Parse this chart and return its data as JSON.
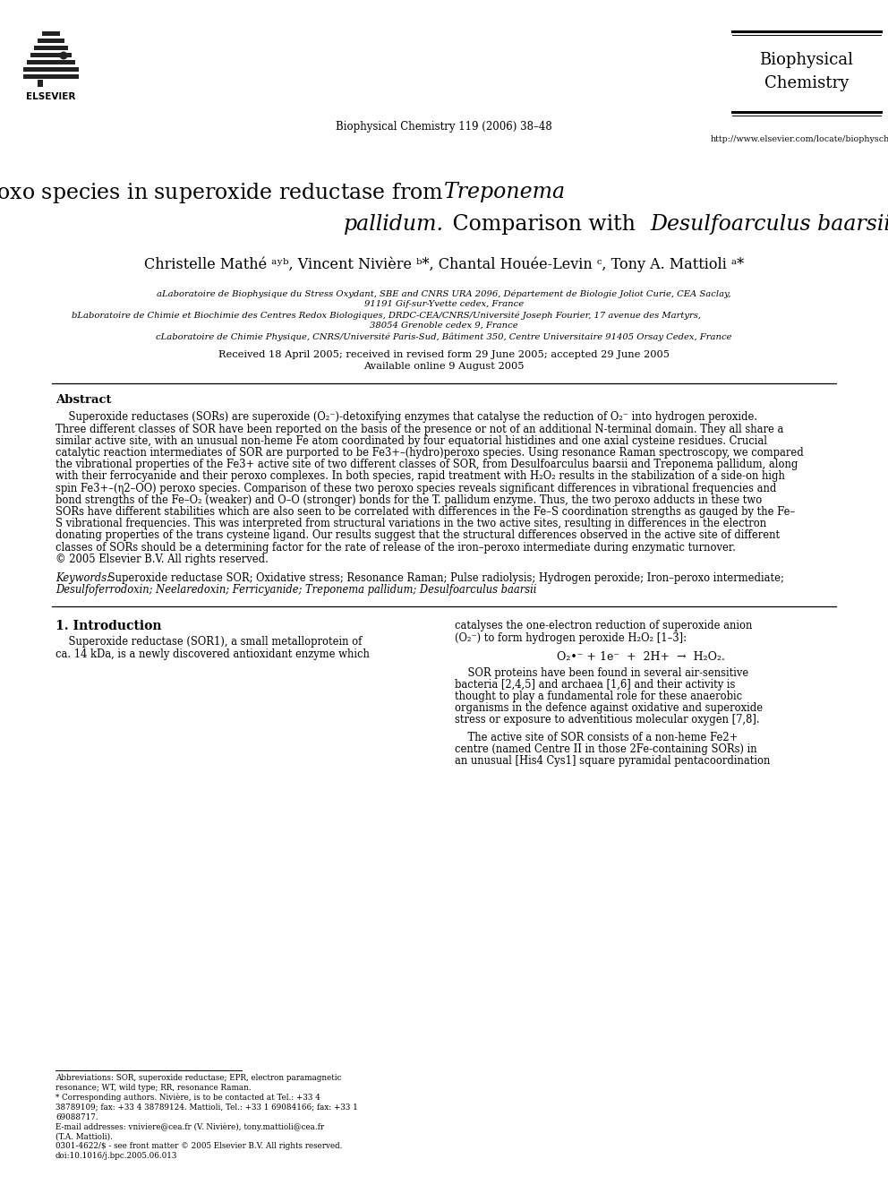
{
  "background_color": "#ffffff",
  "page_width": 9.92,
  "page_height": 13.23,
  "journal_name": "Biophysical\nChemistry",
  "journal_info": "Biophysical Chemistry 119 (2006) 38–48",
  "journal_url": "http://www.elsevier.com/locate/biophyschem",
  "authors": "Christelle Mathé a,b, Vincent Nivière b,*, Chantal Houée-Levin c, Tony A. Mattioli a,*",
  "affil_a": "aLaboratoire de Biophysique du Stress Oxydant, SBE and CNRS URA 2096, Département de Biologie Joliot Curie, CEA Saclay,",
  "affil_a2": "91191 Gif-sur-Yvette cedex, France",
  "affil_b": "bLaboratoire de Chimie et Biochimie des Centres Redox Biologiques, DRDC-CEA/CNRS/Université Joseph Fourier, 17 avenue des Martyrs,",
  "affil_b2": "38054 Grenoble cedex 9, France",
  "affil_c": "cLaboratoire de Chimie Physique, CNRS/Université Paris-Sud, Bâtiment 350, Centre Universitaire 91405 Orsay Cedex, France",
  "received": "Received 18 April 2005; received in revised form 29 June 2005; accepted 29 June 2005",
  "available": "Available online 9 August 2005",
  "abstract_title": "Abstract",
  "abstract_lines": [
    "    Superoxide reductases (SORs) are superoxide (O₂⁻)-detoxifying enzymes that catalyse the reduction of O₂⁻ into hydrogen peroxide.",
    "Three different classes of SOR have been reported on the basis of the presence or not of an additional N-terminal domain. They all share a",
    "similar active site, with an unusual non-heme Fe atom coordinated by four equatorial histidines and one axial cysteine residues. Crucial",
    "catalytic reaction intermediates of SOR are purported to be Fe3+–(hydro)peroxo species. Using resonance Raman spectroscopy, we compared",
    "the vibrational properties of the Fe3+ active site of two different classes of SOR, from Desulfoarculus baarsii and Treponema pallidum, along",
    "with their ferrocyanide and their peroxo complexes. In both species, rapid treatment with H₂O₂ results in the stabilization of a side-on high",
    "spin Fe3+–(η2–OO) peroxo species. Comparison of these two peroxo species reveals significant differences in vibrational frequencies and",
    "bond strengths of the Fe–O₂ (weaker) and O–O (stronger) bonds for the T. pallidum enzyme. Thus, the two peroxo adducts in these two",
    "SORs have different stabilities which are also seen to be correlated with differences in the Fe–S coordination strengths as gauged by the Fe–",
    "S vibrational frequencies. This was interpreted from structural variations in the two active sites, resulting in differences in the electron",
    "donating properties of the trans cysteine ligand. Our results suggest that the structural differences observed in the active site of different",
    "classes of SORs should be a determining factor for the rate of release of the iron–peroxo intermediate during enzymatic turnover.",
    "© 2005 Elsevier B.V. All rights reserved."
  ],
  "kw_label": "Keywords:",
  "kw_line1": " Superoxide reductase SOR; Oxidative stress; Resonance Raman; Pulse radiolysis; Hydrogen peroxide; Iron–peroxo intermediate;",
  "kw_line2": "Desulfoferrodoxin; Neelaredoxin; Ferricyanide; Treponema pallidum; Desulfoarculus baarsii",
  "section1_title": "1. Introduction",
  "left_col_lines": [
    "    Superoxide reductase (SOR1), a small metalloprotein of",
    "ca. 14 kDa, is a newly discovered antioxidant enzyme which"
  ],
  "right_col_intro": [
    "catalyses the one-electron reduction of superoxide anion",
    "(O₂⁻) to form hydrogen peroxide H₂O₂ [1–3]:"
  ],
  "equation": "O₂•⁻ + 1e⁻  +  2H+  →  H₂O₂.",
  "right_col_p2": [
    "    SOR proteins have been found in several air-sensitive",
    "bacteria [2,4,5] and archaea [1,6] and their activity is",
    "thought to play a fundamental role for these anaerobic",
    "organisms in the defence against oxidative and superoxide",
    "stress or exposure to adventitious molecular oxygen [7,8]."
  ],
  "right_col_p3": [
    "    The active site of SOR consists of a non-heme Fe2+",
    "centre (named Centre II in those 2Fe-containing SORs) in",
    "an unusual [His4 Cys1] square pyramidal pentacoordination"
  ],
  "fn_lines": [
    "Abbreviations: SOR, superoxide reductase; EPR, electron paramagnetic",
    "resonance; WT, wild type; RR, resonance Raman.",
    "* Corresponding authors. Nivière, is to be contacted at Tel.: +33 4",
    "38789109; fax: +33 4 38789124. Mattioli, Tel.: +33 1 69084166; fax: +33 1",
    "69088717.",
    "E-mail addresses: vniviere@cea.fr (V. Nivière), tony.mattioli@cea.fr",
    "(T.A. Mattioli).",
    "0301-4622/$ - see front matter © 2005 Elsevier B.V. All rights reserved.",
    "doi:10.1016/j.bpc.2005.06.013"
  ]
}
